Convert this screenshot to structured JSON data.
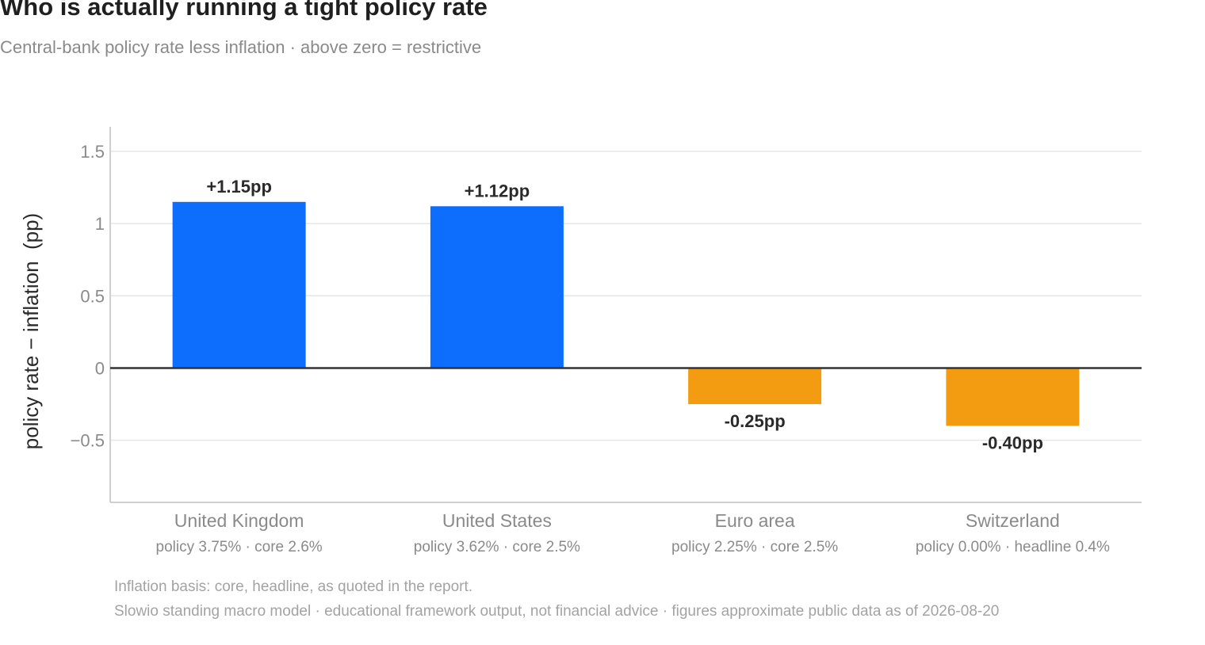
{
  "header": {
    "title": "Who is actually running a tight policy rate",
    "subtitle": "Central-bank policy rate less inflation · above zero = restrictive"
  },
  "chart_data": {
    "type": "bar",
    "categories": [
      "United Kingdom",
      "United States",
      "Euro area",
      "Switzerland"
    ],
    "category_sublabels": [
      "policy 3.75% · core 2.6%",
      "policy 3.62% · core 2.5%",
      "policy 2.25% · core 2.5%",
      "policy 0.00% · headline 0.4%"
    ],
    "values": [
      1.15,
      1.12,
      -0.25,
      -0.4
    ],
    "data_labels": [
      "+1.15pp",
      "+1.12pp",
      "-0.25pp",
      "-0.40pp"
    ],
    "ylabel": "policy rate − inflation  (pp)",
    "ylim": [
      -0.93,
      1.67
    ],
    "yticks": [
      -0.5,
      0,
      0.5,
      1,
      1.5
    ],
    "ytick_labels": [
      "−0.5",
      "0",
      "0.5",
      "1",
      "1.5"
    ],
    "grid": true,
    "colors": {
      "positive": "#0d6efd",
      "negative": "#f39c12",
      "grid": "#e6e6e6",
      "zero_line": "#333333"
    }
  },
  "footer": {
    "note1": "Inflation basis: core, headline, as quoted in the report.",
    "note2": "Slowio standing macro model · educational framework output, not financial advice · figures approximate public data as of 2026-08-20"
  }
}
